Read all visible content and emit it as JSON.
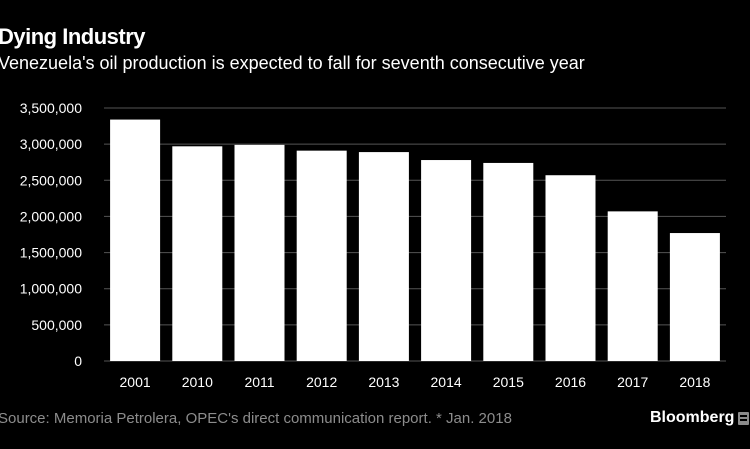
{
  "title": "Dying Industry",
  "subtitle": "Venezuela's oil production is expected to fall for seventh consecutive year",
  "source": "Source: Memoria Petrolera, OPEC's direct communication report. * Jan. 2018",
  "brand": "Bloomberg",
  "brand_icon": "bloomberg-terminal-icon",
  "colors": {
    "background": "#000000",
    "bars": "#ffffff",
    "gridlines": "#555555",
    "axis_text": "#ffffff",
    "source_text": "#8c8c8c"
  },
  "chart_data": {
    "type": "bar",
    "title": "Dying Industry",
    "subtitle": "Venezuela's oil production is expected to fall for seventh consecutive year",
    "categories": [
      "2001",
      "2010",
      "2011",
      "2012",
      "2013",
      "2014",
      "2015",
      "2016",
      "2017",
      "2018"
    ],
    "values": [
      3340000,
      2970000,
      2990000,
      2910000,
      2890000,
      2780000,
      2740000,
      2570000,
      2070000,
      1770000
    ],
    "ylim": [
      0,
      3500000
    ],
    "yticks": [
      0,
      500000,
      1000000,
      1500000,
      2000000,
      2500000,
      3000000,
      3500000
    ],
    "ytick_labels": [
      "0",
      "500,000",
      "1,000,000",
      "1,500,000",
      "2,000,000",
      "2,500,000",
      "3,000,000",
      "3,500,000"
    ],
    "xlabel": "",
    "ylabel": "",
    "grid": true,
    "legend": "none"
  }
}
